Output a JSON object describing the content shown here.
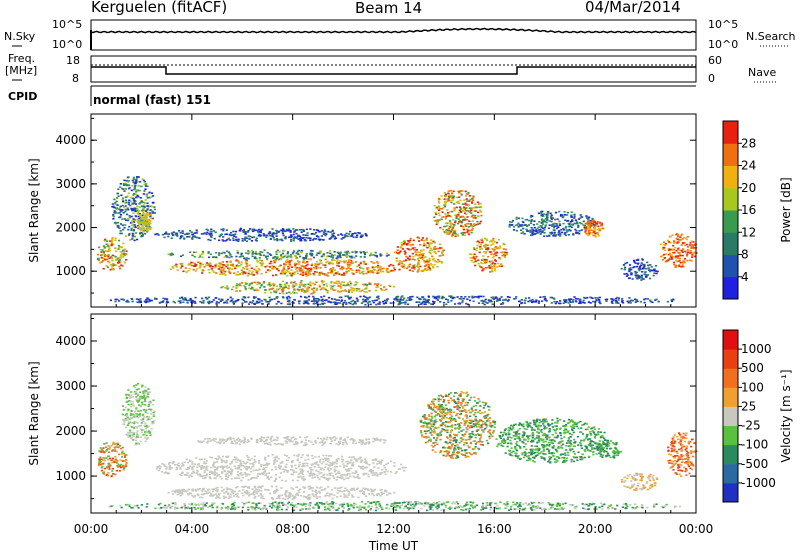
{
  "header": {
    "station": "Kerguelen (fitACF)",
    "beam": "Beam 14",
    "date": "04/Mar/2014"
  },
  "top_panels": {
    "nsky_label": "N.Sky",
    "nsearch_label": "N.Search",
    "noise_ticks_left": [
      "10^5",
      "10^0"
    ],
    "noise_ticks_right": [
      "10^5",
      "10^0"
    ],
    "freq_label_line1": "Freq.",
    "freq_label_line2": "[MHz]",
    "freq_ticks": [
      "18",
      "8"
    ],
    "nave_label": "Nave",
    "nave_ticks": [
      "60",
      "0"
    ],
    "cpid_label": "CPID",
    "cpid_value": "normal (fast) 151"
  },
  "chart_data": [
    {
      "type": "heatmap",
      "name": "power",
      "ylabel": "Slant Range [km]",
      "yticks": [
        "4000",
        "3000",
        "2000",
        "1000"
      ],
      "ytick_values": [
        4000,
        3000,
        2000,
        1000
      ],
      "ylim": [
        180,
        4600
      ],
      "xticks": [
        "00:00",
        "04:00",
        "08:00",
        "12:00",
        "16:00",
        "20:00",
        "00:00"
      ],
      "xtick_hours": [
        0,
        4,
        8,
        12,
        16,
        20,
        24
      ],
      "xlim_hours": [
        0,
        24
      ],
      "colorbar_label": "Power [dB]",
      "colorbar_ticks": [
        "28",
        "24",
        "20",
        "16",
        "12",
        "8",
        "4"
      ],
      "colorbar_colors": [
        "#2020e0",
        "#2050b0",
        "#2a7a68",
        "#3a9a50",
        "#a8c820",
        "#f0b010",
        "#f07010",
        "#e82010"
      ]
    },
    {
      "type": "heatmap",
      "name": "velocity",
      "ylabel": "Slant Range [km]",
      "yticks": [
        "4000",
        "3000",
        "2000",
        "1000"
      ],
      "ytick_values": [
        4000,
        3000,
        2000,
        1000
      ],
      "ylim": [
        180,
        4600
      ],
      "xticks": [
        "00:00",
        "04:00",
        "08:00",
        "12:00",
        "16:00",
        "20:00",
        "00:00"
      ],
      "xtick_hours": [
        0,
        4,
        8,
        12,
        16,
        20,
        24
      ],
      "xlim_hours": [
        0,
        24
      ],
      "xlabel": "Time UT",
      "colorbar_label": "Velocity [m s⁻¹]",
      "colorbar_ticks": [
        "1000",
        "500",
        "100",
        "25",
        "-25",
        "-100",
        "-500",
        "-1000"
      ],
      "colorbar_colors": [
        "#2030c0",
        "#2a6aa0",
        "#2a8a60",
        "#5ac040",
        "#c8c8c0",
        "#f0a030",
        "#f07020",
        "#e84010",
        "#e01010"
      ]
    }
  ]
}
